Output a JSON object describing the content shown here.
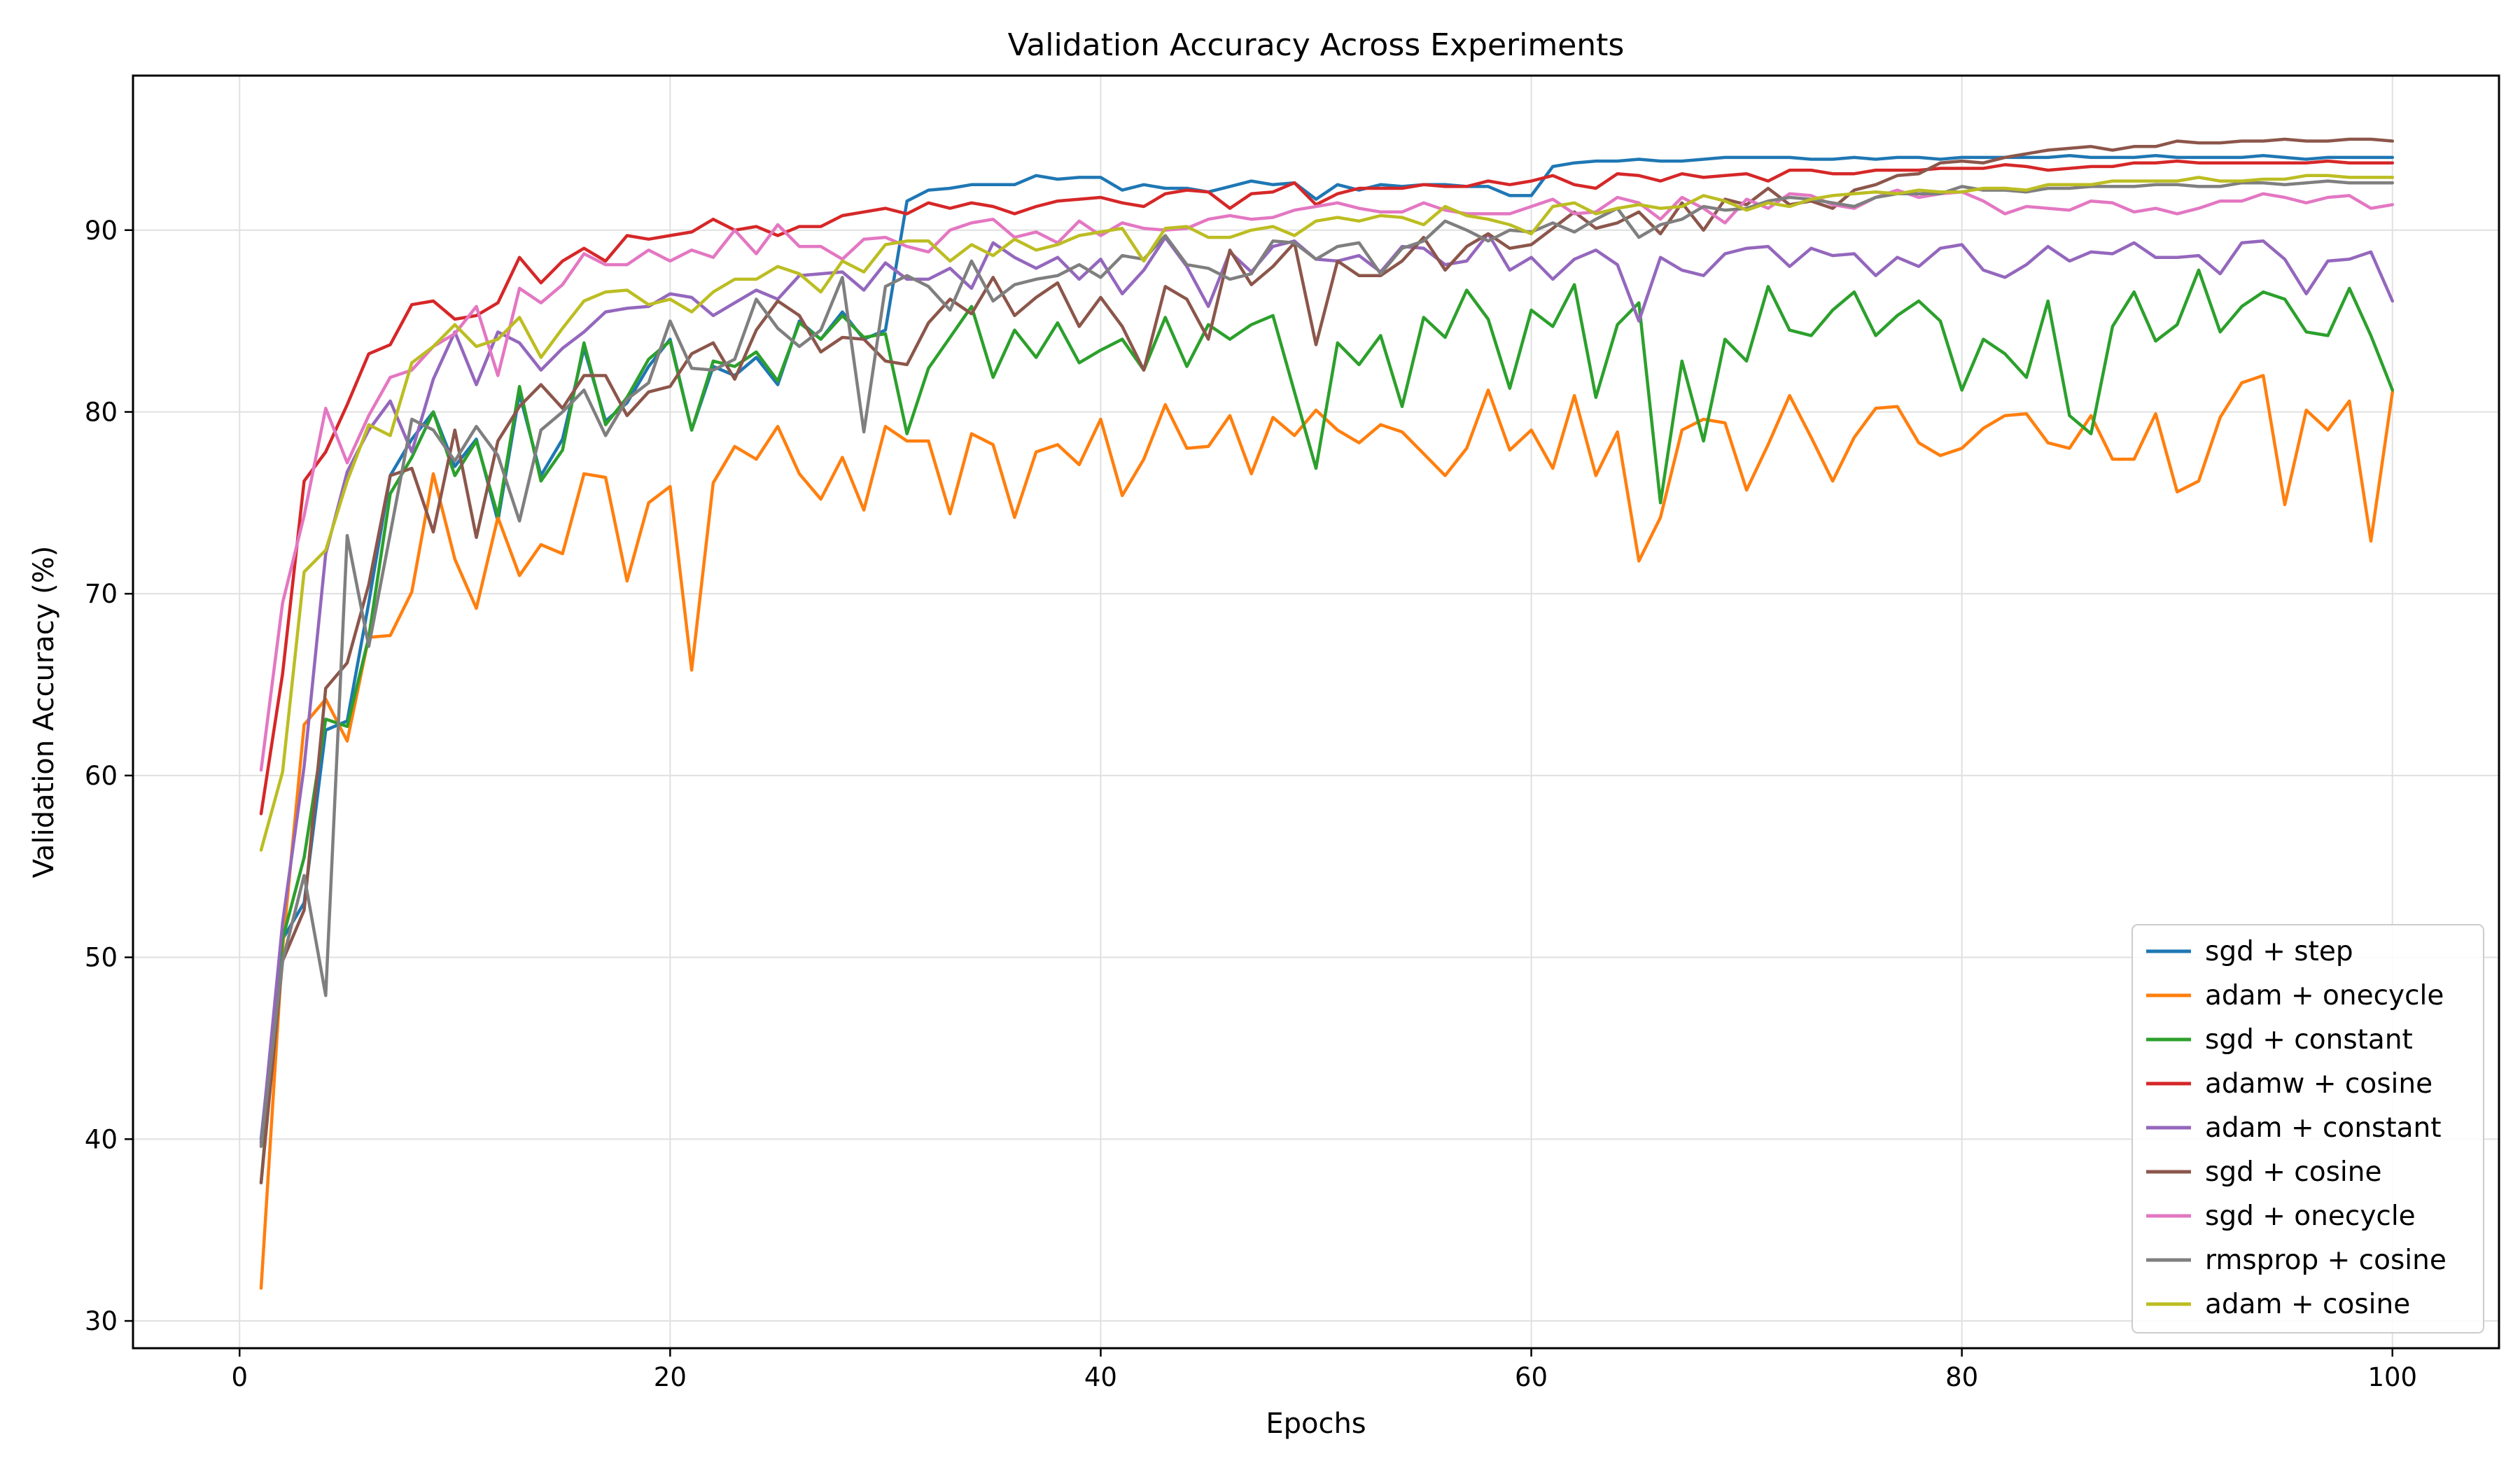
{
  "chart_data": {
    "type": "line",
    "title": "Validation Accuracy Across Experiments",
    "xlabel": "Epochs",
    "ylabel": "Validation Accuracy (%)",
    "xlim": [
      -4.95,
      104.95
    ],
    "ylim": [
      28.5,
      98.5
    ],
    "xticks": [
      0,
      20,
      40,
      60,
      80,
      100
    ],
    "yticks": [
      30,
      40,
      50,
      60,
      70,
      80,
      90
    ],
    "grid": true,
    "legend_position": "lower-right",
    "x": [
      1,
      2,
      3,
      4,
      5,
      6,
      7,
      8,
      9,
      10,
      11,
      12,
      13,
      14,
      15,
      16,
      17,
      18,
      19,
      20,
      21,
      22,
      23,
      24,
      25,
      26,
      27,
      28,
      29,
      30,
      31,
      32,
      33,
      34,
      35,
      36,
      37,
      38,
      39,
      40,
      41,
      42,
      43,
      44,
      45,
      46,
      47,
      48,
      49,
      50,
      51,
      52,
      53,
      54,
      55,
      56,
      57,
      58,
      59,
      60,
      61,
      62,
      63,
      64,
      65,
      66,
      67,
      68,
      69,
      70,
      71,
      72,
      73,
      74,
      75,
      76,
      77,
      78,
      79,
      80,
      81,
      82,
      83,
      84,
      85,
      86,
      87,
      88,
      89,
      90,
      91,
      92,
      93,
      94,
      95,
      96,
      97,
      98,
      99,
      100
    ],
    "series": [
      {
        "name": "sgd + step",
        "color": "#1f77b4",
        "values": [
          40.0,
          51.0,
          53.0,
          62.5,
          63.0,
          69.5,
          76.5,
          78.5,
          80.0,
          77.0,
          78.5,
          74.0,
          81.0,
          76.5,
          78.5,
          83.5,
          79.5,
          80.5,
          82.5,
          84.0,
          79.0,
          82.5,
          82.0,
          83.0,
          81.5,
          85.0,
          84.0,
          85.5,
          84.0,
          84.5,
          91.6,
          92.2,
          92.3,
          92.5,
          92.5,
          92.5,
          93.0,
          92.8,
          92.9,
          92.9,
          92.2,
          92.5,
          92.3,
          92.3,
          92.1,
          92.4,
          92.7,
          92.5,
          92.6,
          91.7,
          92.5,
          92.2,
          92.5,
          92.4,
          92.5,
          92.5,
          92.4,
          92.4,
          91.9,
          91.9,
          93.5,
          93.7,
          93.8,
          93.8,
          93.9,
          93.8,
          93.8,
          93.9,
          94.0,
          94.0,
          94.0,
          94.0,
          93.9,
          93.9,
          94.0,
          93.9,
          94.0,
          94.0,
          93.9,
          94.0,
          94.0,
          94.0,
          94.0,
          94.0,
          94.1,
          94.0,
          94.0,
          94.0,
          94.1,
          94.0,
          94.0,
          94.0,
          94.0,
          94.1,
          94.0,
          93.9,
          94.0,
          94.0,
          94.0,
          94.0
        ]
      },
      {
        "name": "adam + onecycle",
        "color": "#ff7f0e",
        "values": [
          31.8,
          50.5,
          62.8,
          64.2,
          61.9,
          67.6,
          67.7,
          70.1,
          76.6,
          71.9,
          69.2,
          74.2,
          71.0,
          72.7,
          72.2,
          76.6,
          76.4,
          70.7,
          75.0,
          75.9,
          65.8,
          76.1,
          78.1,
          77.4,
          79.2,
          76.6,
          75.2,
          77.5,
          74.6,
          79.2,
          78.4,
          78.4,
          74.4,
          78.8,
          78.2,
          74.2,
          77.8,
          78.2,
          77.1,
          79.6,
          75.4,
          77.4,
          80.4,
          78.0,
          78.1,
          79.8,
          76.6,
          79.7,
          78.7,
          80.1,
          79.0,
          78.3,
          79.3,
          78.9,
          77.7,
          76.5,
          78.0,
          81.2,
          77.9,
          79.0,
          76.9,
          80.9,
          76.5,
          78.9,
          71.8,
          74.2,
          79.0,
          79.6,
          79.4,
          75.7,
          78.2,
          80.9,
          78.6,
          76.2,
          78.6,
          80.2,
          80.3,
          78.3,
          77.6,
          78.0,
          79.1,
          79.8,
          79.9,
          78.3,
          78.0,
          79.8,
          77.4,
          77.4,
          79.9,
          75.6,
          76.2,
          79.7,
          81.6,
          82.0,
          74.9,
          80.1,
          79.0,
          80.6,
          72.9,
          81.1
        ]
      },
      {
        "name": "sgd + constant",
        "color": "#2ca02c",
        "values": [
          37.6,
          51.0,
          55.5,
          63.1,
          62.7,
          67.6,
          75.5,
          77.5,
          80.0,
          76.5,
          78.4,
          74.3,
          81.4,
          76.2,
          77.9,
          83.8,
          79.3,
          80.8,
          82.9,
          83.9,
          79.0,
          82.8,
          82.5,
          83.3,
          81.7,
          84.9,
          84.0,
          85.3,
          84.1,
          84.3,
          78.8,
          82.4,
          84.1,
          85.8,
          81.9,
          84.5,
          83.0,
          84.9,
          82.7,
          83.4,
          84.0,
          82.3,
          85.2,
          82.5,
          84.8,
          84.0,
          84.8,
          85.3,
          81.1,
          76.9,
          83.8,
          82.6,
          84.2,
          80.3,
          85.2,
          84.1,
          86.7,
          85.1,
          81.3,
          85.6,
          84.7,
          87.0,
          80.8,
          84.8,
          86.0,
          75.0,
          82.8,
          78.4,
          84.0,
          82.8,
          86.9,
          84.5,
          84.2,
          85.6,
          86.6,
          84.2,
          85.3,
          86.1,
          85.0,
          81.2,
          84.0,
          83.2,
          81.9,
          86.1,
          79.8,
          78.8,
          84.7,
          86.6,
          83.9,
          84.8,
          87.8,
          84.4,
          85.8,
          86.6,
          86.2,
          84.4,
          84.2,
          86.8,
          84.2,
          81.2
        ]
      },
      {
        "name": "adamw + cosine",
        "color": "#d62728",
        "values": [
          57.9,
          65.6,
          76.2,
          77.8,
          80.4,
          83.2,
          83.7,
          85.9,
          86.1,
          85.1,
          85.3,
          86.0,
          88.5,
          87.1,
          88.3,
          89.0,
          88.3,
          89.7,
          89.5,
          89.7,
          89.9,
          90.6,
          90.0,
          90.2,
          89.7,
          90.2,
          90.2,
          90.8,
          91.0,
          91.2,
          90.9,
          91.5,
          91.2,
          91.5,
          91.3,
          90.9,
          91.3,
          91.6,
          91.7,
          91.8,
          91.5,
          91.3,
          92.0,
          92.2,
          92.1,
          91.2,
          92.0,
          92.1,
          92.6,
          91.4,
          92.0,
          92.3,
          92.3,
          92.3,
          92.5,
          92.4,
          92.4,
          92.7,
          92.5,
          92.7,
          93.0,
          92.5,
          92.3,
          93.1,
          93.0,
          92.7,
          93.1,
          92.9,
          93.0,
          93.1,
          92.7,
          93.3,
          93.3,
          93.1,
          93.1,
          93.3,
          93.3,
          93.3,
          93.4,
          93.4,
          93.4,
          93.6,
          93.5,
          93.3,
          93.4,
          93.5,
          93.5,
          93.7,
          93.7,
          93.8,
          93.7,
          93.7,
          93.7,
          93.7,
          93.7,
          93.7,
          93.8,
          93.7,
          93.7,
          93.7
        ]
      },
      {
        "name": "adam + constant",
        "color": "#9467bd",
        "values": [
          39.8,
          51.9,
          60.5,
          72.2,
          76.7,
          79.0,
          80.6,
          77.8,
          81.8,
          84.4,
          81.5,
          84.4,
          83.8,
          82.3,
          83.5,
          84.4,
          85.5,
          85.7,
          85.8,
          86.5,
          86.3,
          85.3,
          86.0,
          86.7,
          86.2,
          87.5,
          87.6,
          87.7,
          86.7,
          88.2,
          87.3,
          87.3,
          87.9,
          86.8,
          89.3,
          88.5,
          87.9,
          88.5,
          87.3,
          88.4,
          86.5,
          87.8,
          89.6,
          88.0,
          85.8,
          88.8,
          87.7,
          89.1,
          89.4,
          88.4,
          88.3,
          88.6,
          87.7,
          89.1,
          89.0,
          88.1,
          88.3,
          89.8,
          87.8,
          88.5,
          87.3,
          88.4,
          88.9,
          88.1,
          85.0,
          88.5,
          87.8,
          87.5,
          88.7,
          89.0,
          89.1,
          88.0,
          89.0,
          88.6,
          88.7,
          87.5,
          88.5,
          88.0,
          89.0,
          89.2,
          87.8,
          87.4,
          88.1,
          89.1,
          88.3,
          88.8,
          88.7,
          89.3,
          88.5,
          88.5,
          88.6,
          87.6,
          89.3,
          89.4,
          88.4,
          86.5,
          88.3,
          88.4,
          88.8,
          86.1
        ]
      },
      {
        "name": "sgd + cosine",
        "color": "#8c564b",
        "values": [
          37.6,
          49.8,
          52.6,
          64.8,
          66.2,
          70.5,
          76.5,
          76.9,
          73.4,
          79.0,
          73.1,
          78.4,
          80.3,
          81.5,
          80.2,
          82.0,
          82.0,
          79.8,
          81.1,
          81.4,
          83.2,
          83.8,
          81.8,
          84.5,
          86.1,
          85.3,
          83.3,
          84.1,
          84.0,
          82.8,
          82.6,
          84.9,
          86.2,
          85.4,
          87.4,
          85.3,
          86.3,
          87.1,
          84.7,
          86.3,
          84.7,
          82.3,
          86.9,
          86.2,
          84.0,
          88.9,
          87.0,
          88.0,
          89.3,
          83.7,
          88.3,
          87.5,
          87.5,
          88.3,
          89.6,
          87.8,
          89.1,
          89.8,
          89.0,
          89.2,
          90.1,
          91.0,
          90.1,
          90.4,
          91.0,
          89.8,
          91.5,
          90.0,
          91.7,
          91.4,
          92.3,
          91.4,
          91.6,
          91.2,
          92.2,
          92.5,
          93.0,
          93.1,
          93.7,
          93.8,
          93.7,
          94.0,
          94.2,
          94.4,
          94.5,
          94.6,
          94.4,
          94.6,
          94.6,
          94.9,
          94.8,
          94.8,
          94.9,
          94.9,
          95.0,
          94.9,
          94.9,
          95.0,
          95.0,
          94.9
        ]
      },
      {
        "name": "sgd + onecycle",
        "color": "#e377c2",
        "values": [
          60.3,
          69.5,
          74.3,
          80.2,
          77.2,
          79.8,
          81.9,
          82.3,
          83.6,
          84.3,
          85.8,
          82.0,
          86.8,
          86.0,
          87.0,
          88.7,
          88.1,
          88.1,
          88.9,
          88.3,
          88.9,
          88.5,
          90.0,
          88.7,
          90.3,
          89.1,
          89.1,
          88.4,
          89.5,
          89.6,
          89.1,
          88.8,
          90.0,
          90.4,
          90.6,
          89.6,
          89.9,
          89.3,
          90.5,
          89.7,
          90.4,
          90.1,
          90.0,
          90.1,
          90.6,
          90.8,
          90.6,
          90.7,
          91.1,
          91.3,
          91.5,
          91.2,
          91.0,
          91.0,
          91.5,
          91.1,
          90.9,
          90.9,
          90.9,
          91.3,
          91.7,
          90.9,
          91.0,
          91.8,
          91.5,
          90.6,
          91.8,
          91.2,
          90.4,
          91.7,
          91.2,
          92.0,
          91.9,
          91.4,
          91.2,
          91.8,
          92.2,
          91.8,
          92.0,
          92.1,
          91.6,
          90.9,
          91.3,
          91.2,
          91.1,
          91.6,
          91.5,
          91.0,
          91.2,
          90.9,
          91.2,
          91.6,
          91.6,
          92.0,
          91.8,
          91.5,
          91.8,
          91.9,
          91.2,
          91.4
        ]
      },
      {
        "name": "rmsprop + cosine",
        "color": "#7f7f7f",
        "values": [
          39.6,
          49.8,
          54.5,
          47.9,
          73.2,
          67.1,
          73.3,
          79.6,
          79.0,
          77.3,
          79.2,
          77.6,
          74.0,
          79.0,
          80.0,
          81.2,
          78.7,
          80.7,
          81.6,
          85.0,
          82.4,
          82.3,
          82.9,
          86.2,
          84.6,
          83.6,
          84.5,
          87.4,
          78.9,
          86.9,
          87.5,
          86.9,
          85.6,
          88.3,
          86.1,
          87.0,
          87.3,
          87.5,
          88.1,
          87.4,
          88.6,
          88.4,
          89.7,
          88.1,
          87.9,
          87.3,
          87.6,
          89.4,
          89.3,
          88.4,
          89.1,
          89.3,
          87.6,
          89.0,
          89.4,
          90.5,
          90.0,
          89.4,
          90.0,
          89.9,
          90.4,
          89.9,
          90.6,
          91.2,
          89.6,
          90.3,
          90.6,
          91.3,
          91.1,
          91.2,
          91.6,
          91.8,
          91.7,
          91.5,
          91.3,
          91.8,
          92.0,
          92.0,
          92.0,
          92.4,
          92.2,
          92.2,
          92.1,
          92.3,
          92.3,
          92.4,
          92.4,
          92.4,
          92.5,
          92.5,
          92.4,
          92.4,
          92.6,
          92.6,
          92.5,
          92.6,
          92.7,
          92.6,
          92.6,
          92.6
        ]
      },
      {
        "name": "adam + cosine",
        "color": "#bcbd22",
        "values": [
          55.9,
          60.2,
          71.2,
          72.4,
          76.2,
          79.3,
          78.7,
          82.7,
          83.6,
          84.8,
          83.6,
          84.0,
          85.2,
          83.0,
          84.6,
          86.1,
          86.6,
          86.7,
          85.9,
          86.2,
          85.5,
          86.6,
          87.3,
          87.3,
          88.0,
          87.6,
          86.6,
          88.3,
          87.7,
          89.2,
          89.4,
          89.4,
          88.3,
          89.2,
          88.6,
          89.5,
          88.9,
          89.2,
          89.7,
          89.9,
          90.1,
          88.3,
          90.1,
          90.2,
          89.6,
          89.6,
          90.0,
          90.2,
          89.7,
          90.5,
          90.7,
          90.5,
          90.8,
          90.7,
          90.3,
          91.3,
          90.8,
          90.6,
          90.3,
          89.8,
          91.3,
          91.5,
          90.9,
          91.2,
          91.4,
          91.2,
          91.3,
          91.9,
          91.6,
          91.1,
          91.5,
          91.3,
          91.7,
          91.9,
          92.0,
          92.1,
          92.0,
          92.2,
          92.1,
          92.1,
          92.3,
          92.3,
          92.2,
          92.5,
          92.5,
          92.5,
          92.7,
          92.7,
          92.7,
          92.7,
          92.9,
          92.7,
          92.7,
          92.8,
          92.8,
          93.0,
          93.0,
          92.9,
          92.9,
          92.9
        ]
      }
    ]
  }
}
